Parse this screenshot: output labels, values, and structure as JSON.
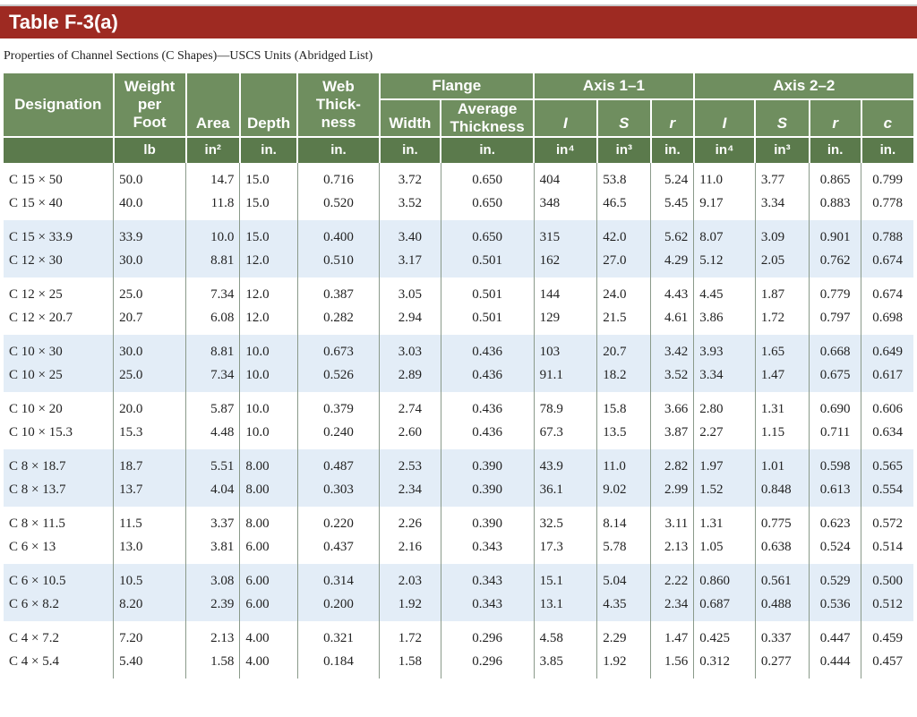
{
  "title": "Table F-3(a)",
  "caption": "Properties of Channel Sections (C Shapes)—USCS Units (Abridged List)",
  "headers": {
    "designation": "Designation",
    "weight": [
      "Weight",
      "per",
      "Foot"
    ],
    "area": "Area",
    "depth": "Depth",
    "web": [
      "Web",
      "Thick-",
      "ness"
    ],
    "flange": "Flange",
    "flange_width": "Width",
    "flange_avg": [
      "Average",
      "Thickness"
    ],
    "axis11": "Axis 1–1",
    "axis22": "Axis 2–2",
    "I": "I",
    "S": "S",
    "r": "r",
    "c": "c"
  },
  "units": {
    "weight": "lb",
    "area": "in²",
    "depth": "in.",
    "web": "in.",
    "width": "in.",
    "avg": "in.",
    "I1": "in⁴",
    "S1": "in³",
    "r1": "in.",
    "I2": "in⁴",
    "S2": "in³",
    "r2": "in.",
    "c2": "in."
  },
  "rows": [
    [
      "C 15 × 50",
      "50.0",
      "14.7",
      "15.0",
      "0.716",
      "3.72",
      "0.650",
      "404",
      "53.8",
      "5.24",
      "11.0",
      "3.77",
      "0.865",
      "0.799"
    ],
    [
      "C 15 × 40",
      "40.0",
      "11.8",
      "15.0",
      "0.520",
      "3.52",
      "0.650",
      "348",
      "46.5",
      "5.45",
      "9.17",
      "3.34",
      "0.883",
      "0.778"
    ],
    [
      "C 15 × 33.9",
      "33.9",
      "10.0",
      "15.0",
      "0.400",
      "3.40",
      "0.650",
      "315",
      "42.0",
      "5.62",
      "8.07",
      "3.09",
      "0.901",
      "0.788"
    ],
    [
      "C 12 × 30",
      "30.0",
      "8.81",
      "12.0",
      "0.510",
      "3.17",
      "0.501",
      "162",
      "27.0",
      "4.29",
      "5.12",
      "2.05",
      "0.762",
      "0.674"
    ],
    [
      "C 12 × 25",
      "25.0",
      "7.34",
      "12.0",
      "0.387",
      "3.05",
      "0.501",
      "144",
      "24.0",
      "4.43",
      "4.45",
      "1.87",
      "0.779",
      "0.674"
    ],
    [
      "C 12 × 20.7",
      "20.7",
      "6.08",
      "12.0",
      "0.282",
      "2.94",
      "0.501",
      "129",
      "21.5",
      "4.61",
      "3.86",
      "1.72",
      "0.797",
      "0.698"
    ],
    [
      "C 10 × 30",
      "30.0",
      "8.81",
      "10.0",
      "0.673",
      "3.03",
      "0.436",
      "103",
      "20.7",
      "3.42",
      "3.93",
      "1.65",
      "0.668",
      "0.649"
    ],
    [
      "C 10 × 25",
      "25.0",
      "7.34",
      "10.0",
      "0.526",
      "2.89",
      "0.436",
      "91.1",
      "18.2",
      "3.52",
      "3.34",
      "1.47",
      "0.675",
      "0.617"
    ],
    [
      "C 10 × 20",
      "20.0",
      "5.87",
      "10.0",
      "0.379",
      "2.74",
      "0.436",
      "78.9",
      "15.8",
      "3.66",
      "2.80",
      "1.31",
      "0.690",
      "0.606"
    ],
    [
      "C 10 × 15.3",
      "15.3",
      "4.48",
      "10.0",
      "0.240",
      "2.60",
      "0.436",
      "67.3",
      "13.5",
      "3.87",
      "2.27",
      "1.15",
      "0.711",
      "0.634"
    ],
    [
      "C 8 × 18.7",
      "18.7",
      "5.51",
      "8.00",
      "0.487",
      "2.53",
      "0.390",
      "43.9",
      "11.0",
      "2.82",
      "1.97",
      "1.01",
      "0.598",
      "0.565"
    ],
    [
      "C 8 × 13.7",
      "13.7",
      "4.04",
      "8.00",
      "0.303",
      "2.34",
      "0.390",
      "36.1",
      "9.02",
      "2.99",
      "1.52",
      "0.848",
      "0.613",
      "0.554"
    ],
    [
      "C 8 × 11.5",
      "11.5",
      "3.37",
      "8.00",
      "0.220",
      "2.26",
      "0.390",
      "32.5",
      "8.14",
      "3.11",
      "1.31",
      "0.775",
      "0.623",
      "0.572"
    ],
    [
      "C 6 × 13",
      "13.0",
      "3.81",
      "6.00",
      "0.437",
      "2.16",
      "0.343",
      "17.3",
      "5.78",
      "2.13",
      "1.05",
      "0.638",
      "0.524",
      "0.514"
    ],
    [
      "C 6 × 10.5",
      "10.5",
      "3.08",
      "6.00",
      "0.314",
      "2.03",
      "0.343",
      "15.1",
      "5.04",
      "2.22",
      "0.860",
      "0.561",
      "0.529",
      "0.500"
    ],
    [
      "C 6 × 8.2",
      "8.20",
      "2.39",
      "6.00",
      "0.200",
      "1.92",
      "0.343",
      "13.1",
      "4.35",
      "2.34",
      "0.687",
      "0.488",
      "0.536",
      "0.512"
    ],
    [
      "C 4 × 7.2",
      "7.20",
      "2.13",
      "4.00",
      "0.321",
      "1.72",
      "0.296",
      "4.58",
      "2.29",
      "1.47",
      "0.425",
      "0.337",
      "0.447",
      "0.459"
    ],
    [
      "C 4 × 5.4",
      "5.40",
      "1.58",
      "4.00",
      "0.184",
      "1.58",
      "0.296",
      "3.85",
      "1.92",
      "1.56",
      "0.312",
      "0.277",
      "0.444",
      "0.457"
    ]
  ],
  "colors": {
    "title_bg": "#9e2a22",
    "header_bg": "#6f8e5f",
    "band_bg": "#e3edf7"
  }
}
